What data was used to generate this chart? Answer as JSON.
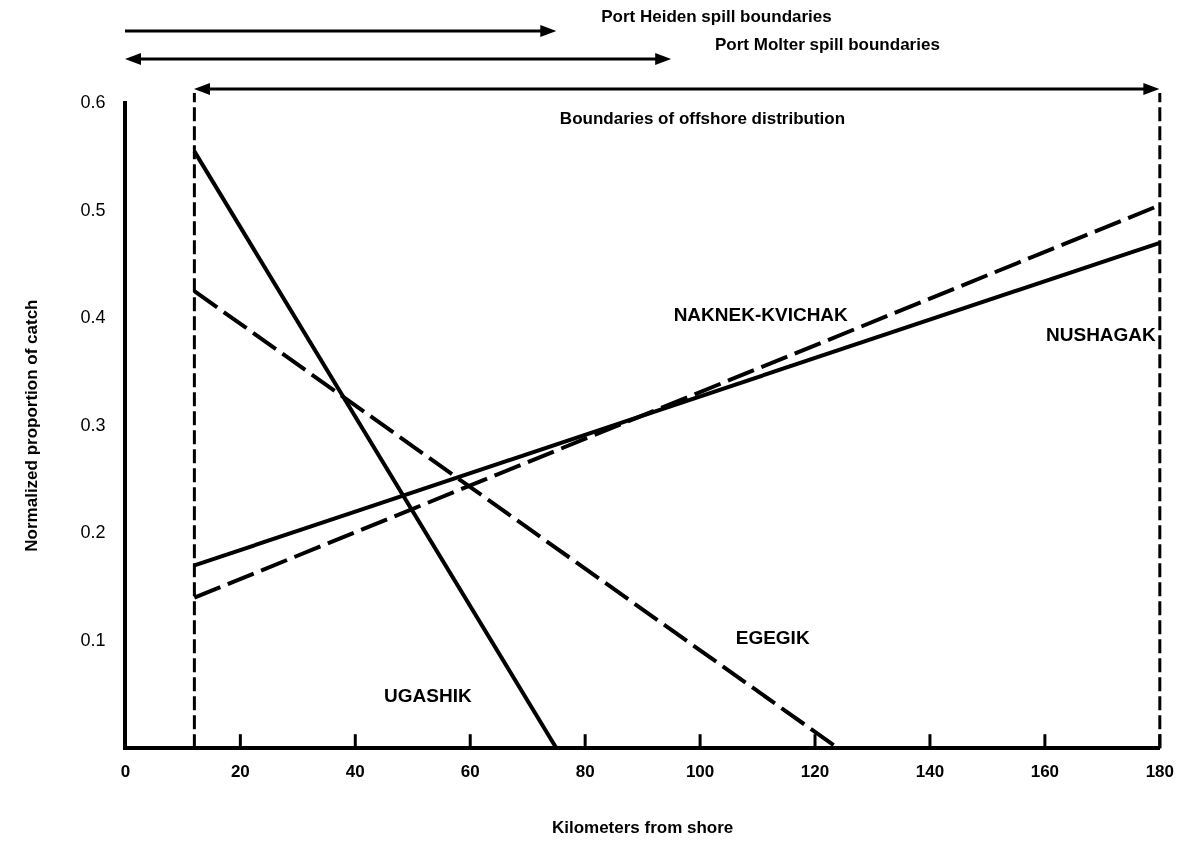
{
  "chart_data": {
    "type": "line",
    "xlabel": "Kilometers from shore",
    "ylabel": "Normalized proportion of catch",
    "xlim": [
      0,
      180
    ],
    "xticks": [
      0,
      20,
      40,
      60,
      80,
      100,
      120,
      140,
      160,
      180
    ],
    "ylim": [
      0,
      0.6
    ],
    "yticks": [
      0.1,
      0.2,
      0.3,
      0.4,
      0.5,
      0.6
    ],
    "grid": false,
    "legend": false,
    "marker": "none",
    "series": [
      {
        "name": "UGASHIK",
        "color": "#000000",
        "x": [
          12,
          75
        ],
        "values": [
          0.555,
          0
        ],
        "line_style": "solid"
      },
      {
        "name": "EGEGIK",
        "color": "#000000",
        "x": [
          12,
          124
        ],
        "values": [
          0.425,
          0
        ],
        "line_style": "dashed"
      },
      {
        "name": "NUSHAGAK",
        "color": "#000000",
        "x": [
          12,
          180
        ],
        "values": [
          0.17,
          0.47
        ],
        "line_style": "solid"
      },
      {
        "name": "NAKNEK-KVICHAK",
        "color": "#000000",
        "x": [
          12,
          180
        ],
        "values": [
          0.14,
          0.505
        ],
        "line_style": "dashed"
      }
    ],
    "ref_lines": [
      {
        "axis": "x",
        "value": 12,
        "line_style": "dashed"
      },
      {
        "axis": "x",
        "value": 180,
        "line_style": "dashed"
      }
    ],
    "annotations": [
      "Port Heiden spill boundaries",
      "Port Molter spill boundaries",
      "Boundaries of offshore distribution"
    ]
  }
}
